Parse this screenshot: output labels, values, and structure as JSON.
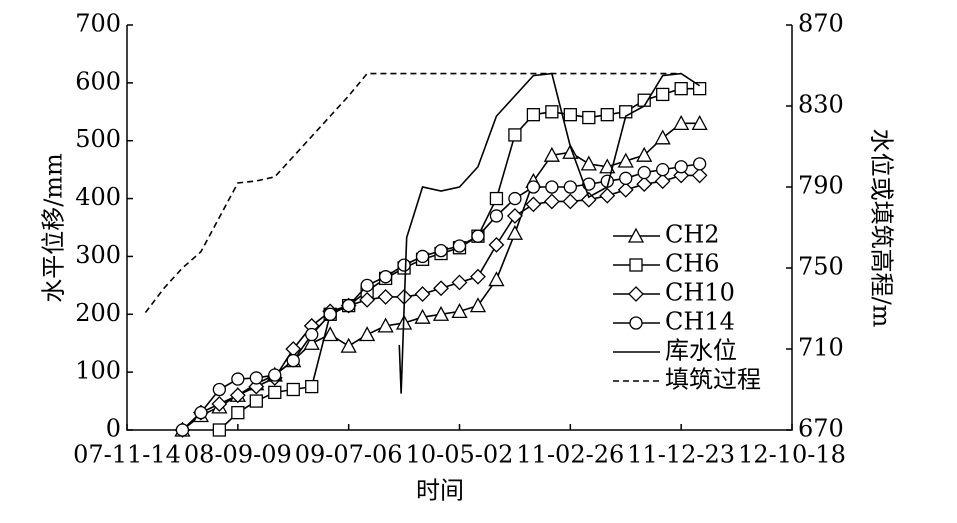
{
  "chart_data": {
    "type": "line",
    "xlabel": "时间",
    "ylabel": "水平位移/mm",
    "y2label": "水位或填筑高程/m",
    "xlim": [
      "07-11-14",
      "12-10-18"
    ],
    "xticks": [
      "07-11-14",
      "08-09-09",
      "09-07-06",
      "10-05-02",
      "11-02-26",
      "11-12-23",
      "12-10-18"
    ],
    "ylim": [
      0,
      700
    ],
    "yticks": [
      0,
      100,
      200,
      300,
      400,
      500,
      600,
      700
    ],
    "y2lim": [
      670,
      870
    ],
    "y2ticks": [
      670,
      710,
      750,
      790,
      830,
      870
    ],
    "series": [
      {
        "name": "CH2",
        "color": "#000000",
        "marker": "triangle",
        "line_style": "solid",
        "x": [
          "08-04-12",
          "08-06-01",
          "08-07-21",
          "08-09-09",
          "08-10-29",
          "08-12-18",
          "09-02-06",
          "09-03-28",
          "09-05-17",
          "09-07-06",
          "09-08-25",
          "09-10-14",
          "09-12-03",
          "10-01-22",
          "10-03-13",
          "10-05-02",
          "10-06-21",
          "10-08-10",
          "10-09-29",
          "10-11-18",
          "11-01-07",
          "11-02-26",
          "11-04-17",
          "11-06-06",
          "11-07-26",
          "11-09-14",
          "11-11-03",
          "11-12-23",
          "12-02-11"
        ],
        "values": [
          0,
          25,
          40,
          60,
          80,
          95,
          120,
          150,
          165,
          145,
          165,
          180,
          185,
          195,
          200,
          205,
          215,
          260,
          340,
          430,
          475,
          480,
          460,
          455,
          465,
          475,
          505,
          530,
          530
        ]
      },
      {
        "name": "CH6",
        "color": "#000000",
        "marker": "square",
        "line_style": "solid",
        "x": [
          "08-07-21",
          "08-09-09",
          "08-10-29",
          "08-12-18",
          "09-02-06",
          "09-03-28",
          "09-05-17",
          "09-07-06",
          "09-08-25",
          "09-10-14",
          "09-12-03",
          "10-01-22",
          "10-03-13",
          "10-05-02",
          "10-06-21",
          "10-08-10",
          "10-09-29",
          "10-11-18",
          "11-01-07",
          "11-02-26",
          "11-04-17",
          "11-06-06",
          "11-07-26",
          "11-09-14",
          "11-11-03",
          "11-12-23",
          "12-02-11"
        ],
        "values": [
          0,
          30,
          50,
          65,
          70,
          75,
          200,
          215,
          240,
          262,
          280,
          295,
          305,
          315,
          335,
          400,
          510,
          545,
          550,
          545,
          540,
          545,
          550,
          570,
          580,
          590,
          590
        ]
      },
      {
        "name": "CH10",
        "color": "#000000",
        "marker": "diamond",
        "line_style": "solid",
        "x": [
          "08-04-12",
          "08-06-01",
          "08-07-21",
          "08-09-09",
          "08-10-29",
          "08-12-18",
          "09-02-06",
          "09-03-28",
          "09-05-17",
          "09-07-06",
          "09-08-25",
          "09-10-14",
          "09-12-03",
          "10-01-22",
          "10-03-13",
          "10-05-02",
          "10-06-21",
          "10-08-10",
          "10-09-29",
          "10-11-18",
          "11-01-07",
          "11-02-26",
          "11-04-17",
          "11-06-06",
          "11-07-26",
          "11-09-14",
          "11-11-03",
          "11-12-23",
          "12-02-11"
        ],
        "values": [
          0,
          30,
          45,
          60,
          75,
          90,
          140,
          180,
          205,
          215,
          225,
          230,
          230,
          235,
          245,
          255,
          265,
          320,
          370,
          390,
          395,
          395,
          398,
          405,
          415,
          425,
          430,
          440,
          440
        ]
      },
      {
        "name": "CH14",
        "color": "#000000",
        "marker": "circle",
        "line_style": "solid",
        "x": [
          "08-04-12",
          "08-06-01",
          "08-07-21",
          "08-09-09",
          "08-10-29",
          "08-12-18",
          "09-02-06",
          "09-03-28",
          "09-05-17",
          "09-07-06",
          "09-08-25",
          "09-10-14",
          "09-12-03",
          "10-01-22",
          "10-03-13",
          "10-05-02",
          "10-06-21",
          "10-08-10",
          "10-09-29",
          "10-11-18",
          "11-01-07",
          "11-02-26",
          "11-04-17",
          "11-06-06",
          "11-07-26",
          "11-09-14",
          "11-11-03",
          "11-12-23",
          "12-02-11"
        ],
        "values": [
          0,
          30,
          70,
          88,
          90,
          95,
          120,
          165,
          200,
          215,
          250,
          265,
          285,
          300,
          310,
          318,
          335,
          370,
          400,
          420,
          420,
          420,
          425,
          430,
          435,
          445,
          450,
          455,
          460
        ]
      },
      {
        "name": "库水位",
        "color": "#000000",
        "marker": "none",
        "line_style": "solid",
        "axis": "y2",
        "x": [
          "09-11-20",
          "09-11-25",
          "09-12-03",
          "09-12-10",
          "10-01-22",
          "10-03-13",
          "10-05-02",
          "10-06-21",
          "10-08-10",
          "10-09-29",
          "10-11-18",
          "11-01-07",
          "11-02-26",
          "11-04-17",
          "11-06-06",
          "11-07-26",
          "11-09-14",
          "11-11-03",
          "11-12-23",
          "12-02-11"
        ],
        "values": [
          712,
          688,
          730,
          765,
          790,
          788,
          790,
          800,
          825,
          835,
          845,
          846,
          810,
          785,
          790,
          825,
          830,
          845,
          846,
          840
        ]
      },
      {
        "name": "填筑过程",
        "color": "#000000",
        "marker": "none",
        "line_style": "dashed",
        "axis": "y2",
        "x": [
          "08-01-03",
          "08-02-22",
          "08-04-12",
          "08-06-01",
          "08-07-21",
          "08-09-09",
          "08-10-29",
          "08-12-18",
          "09-02-06",
          "09-03-28",
          "09-05-17",
          "09-07-06",
          "09-08-25",
          "10-01-22",
          "10-06-21",
          "11-01-07",
          "11-06-06",
          "11-12-23"
        ],
        "values": [
          728,
          740,
          750,
          758,
          775,
          792,
          793,
          795,
          805,
          815,
          825,
          835,
          846,
          846,
          846,
          846,
          846,
          846
        ]
      }
    ]
  }
}
